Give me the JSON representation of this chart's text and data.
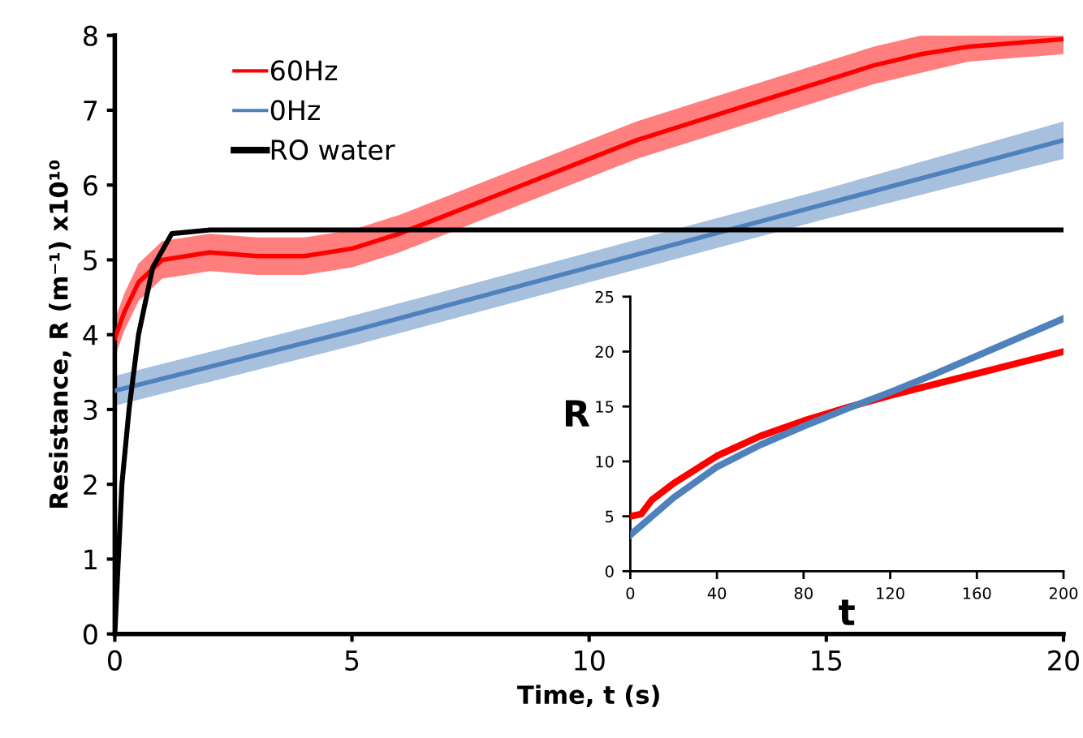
{
  "chart_data": [
    {
      "type": "line",
      "xlabel": "Time, t (s)",
      "ylabel": "Resistance, R (m⁻¹) x10¹⁰",
      "xlim": [
        0,
        20
      ],
      "ylim": [
        0,
        8
      ],
      "xticks": [
        0,
        5,
        10,
        15,
        20
      ],
      "yticks": [
        0,
        1,
        2,
        3,
        4,
        5,
        6,
        7,
        8
      ],
      "grid": false,
      "legend": "top left",
      "marker": "none",
      "line_style": "solid",
      "series": [
        {
          "name": "60Hz",
          "color": "#ff0000",
          "x": [
            0,
            0.2,
            0.5,
            1,
            2,
            3,
            4,
            5,
            6,
            7,
            8,
            9,
            10,
            11,
            12,
            13,
            14,
            15,
            16,
            17,
            18,
            19,
            20
          ],
          "values": [
            3.95,
            4.3,
            4.7,
            5.0,
            5.1,
            5.05,
            5.05,
            5.15,
            5.35,
            5.6,
            5.85,
            6.1,
            6.35,
            6.6,
            6.8,
            7.0,
            7.2,
            7.4,
            7.6,
            7.75,
            7.85,
            7.9,
            7.95
          ],
          "lower": [
            3.7,
            4.05,
            4.45,
            4.75,
            4.85,
            4.8,
            4.8,
            4.9,
            5.1,
            5.35,
            5.6,
            5.85,
            6.1,
            6.35,
            6.55,
            6.75,
            6.95,
            7.15,
            7.35,
            7.5,
            7.65,
            7.7,
            7.75
          ],
          "upper": [
            4.2,
            4.55,
            4.95,
            5.25,
            5.35,
            5.3,
            5.3,
            5.4,
            5.6,
            5.85,
            6.1,
            6.35,
            6.6,
            6.85,
            7.05,
            7.25,
            7.45,
            7.65,
            7.85,
            8.0,
            8.0,
            8.0,
            8.0
          ]
        },
        {
          "name": "0Hz",
          "color": "#4f81bd",
          "x": [
            0,
            5,
            10,
            15,
            20
          ],
          "values": [
            3.25,
            4.05,
            4.9,
            5.75,
            6.6
          ],
          "lower": [
            3.05,
            3.85,
            4.7,
            5.55,
            6.35
          ],
          "upper": [
            3.45,
            4.25,
            5.1,
            5.95,
            6.85
          ]
        },
        {
          "name": "RO water",
          "color": "#000000",
          "x": [
            0,
            0.15,
            0.3,
            0.5,
            0.8,
            1.2,
            2,
            5,
            10,
            15,
            20
          ],
          "values": [
            0,
            2,
            3,
            4,
            4.9,
            5.35,
            5.4,
            5.4,
            5.4,
            5.4,
            5.4
          ]
        }
      ]
    },
    {
      "type": "line",
      "xlabel": "t",
      "ylabel": "R",
      "xlim": [
        0,
        200
      ],
      "ylim": [
        0,
        25
      ],
      "xticks": [
        0,
        40,
        80,
        120,
        160,
        200
      ],
      "yticks": [
        0,
        5,
        10,
        15,
        20,
        25
      ],
      "grid": false,
      "legend": false,
      "marker": "none",
      "line_style": "solid",
      "series": [
        {
          "color": "#ff0000",
          "x": [
            0,
            5,
            10,
            20,
            40,
            60,
            80,
            100,
            120,
            140,
            160,
            180,
            200
          ],
          "values": [
            5,
            5.2,
            6.5,
            8,
            10.5,
            12.3,
            13.7,
            14.9,
            16,
            17,
            18,
            19,
            20
          ]
        },
        {
          "color": "#4f81bd",
          "x": [
            0,
            10,
            20,
            40,
            60,
            80,
            100,
            120,
            140,
            160,
            180,
            200
          ],
          "values": [
            3.3,
            5,
            6.7,
            9.5,
            11.5,
            13.2,
            14.8,
            16.3,
            17.9,
            19.6,
            21.3,
            23
          ]
        }
      ]
    }
  ]
}
